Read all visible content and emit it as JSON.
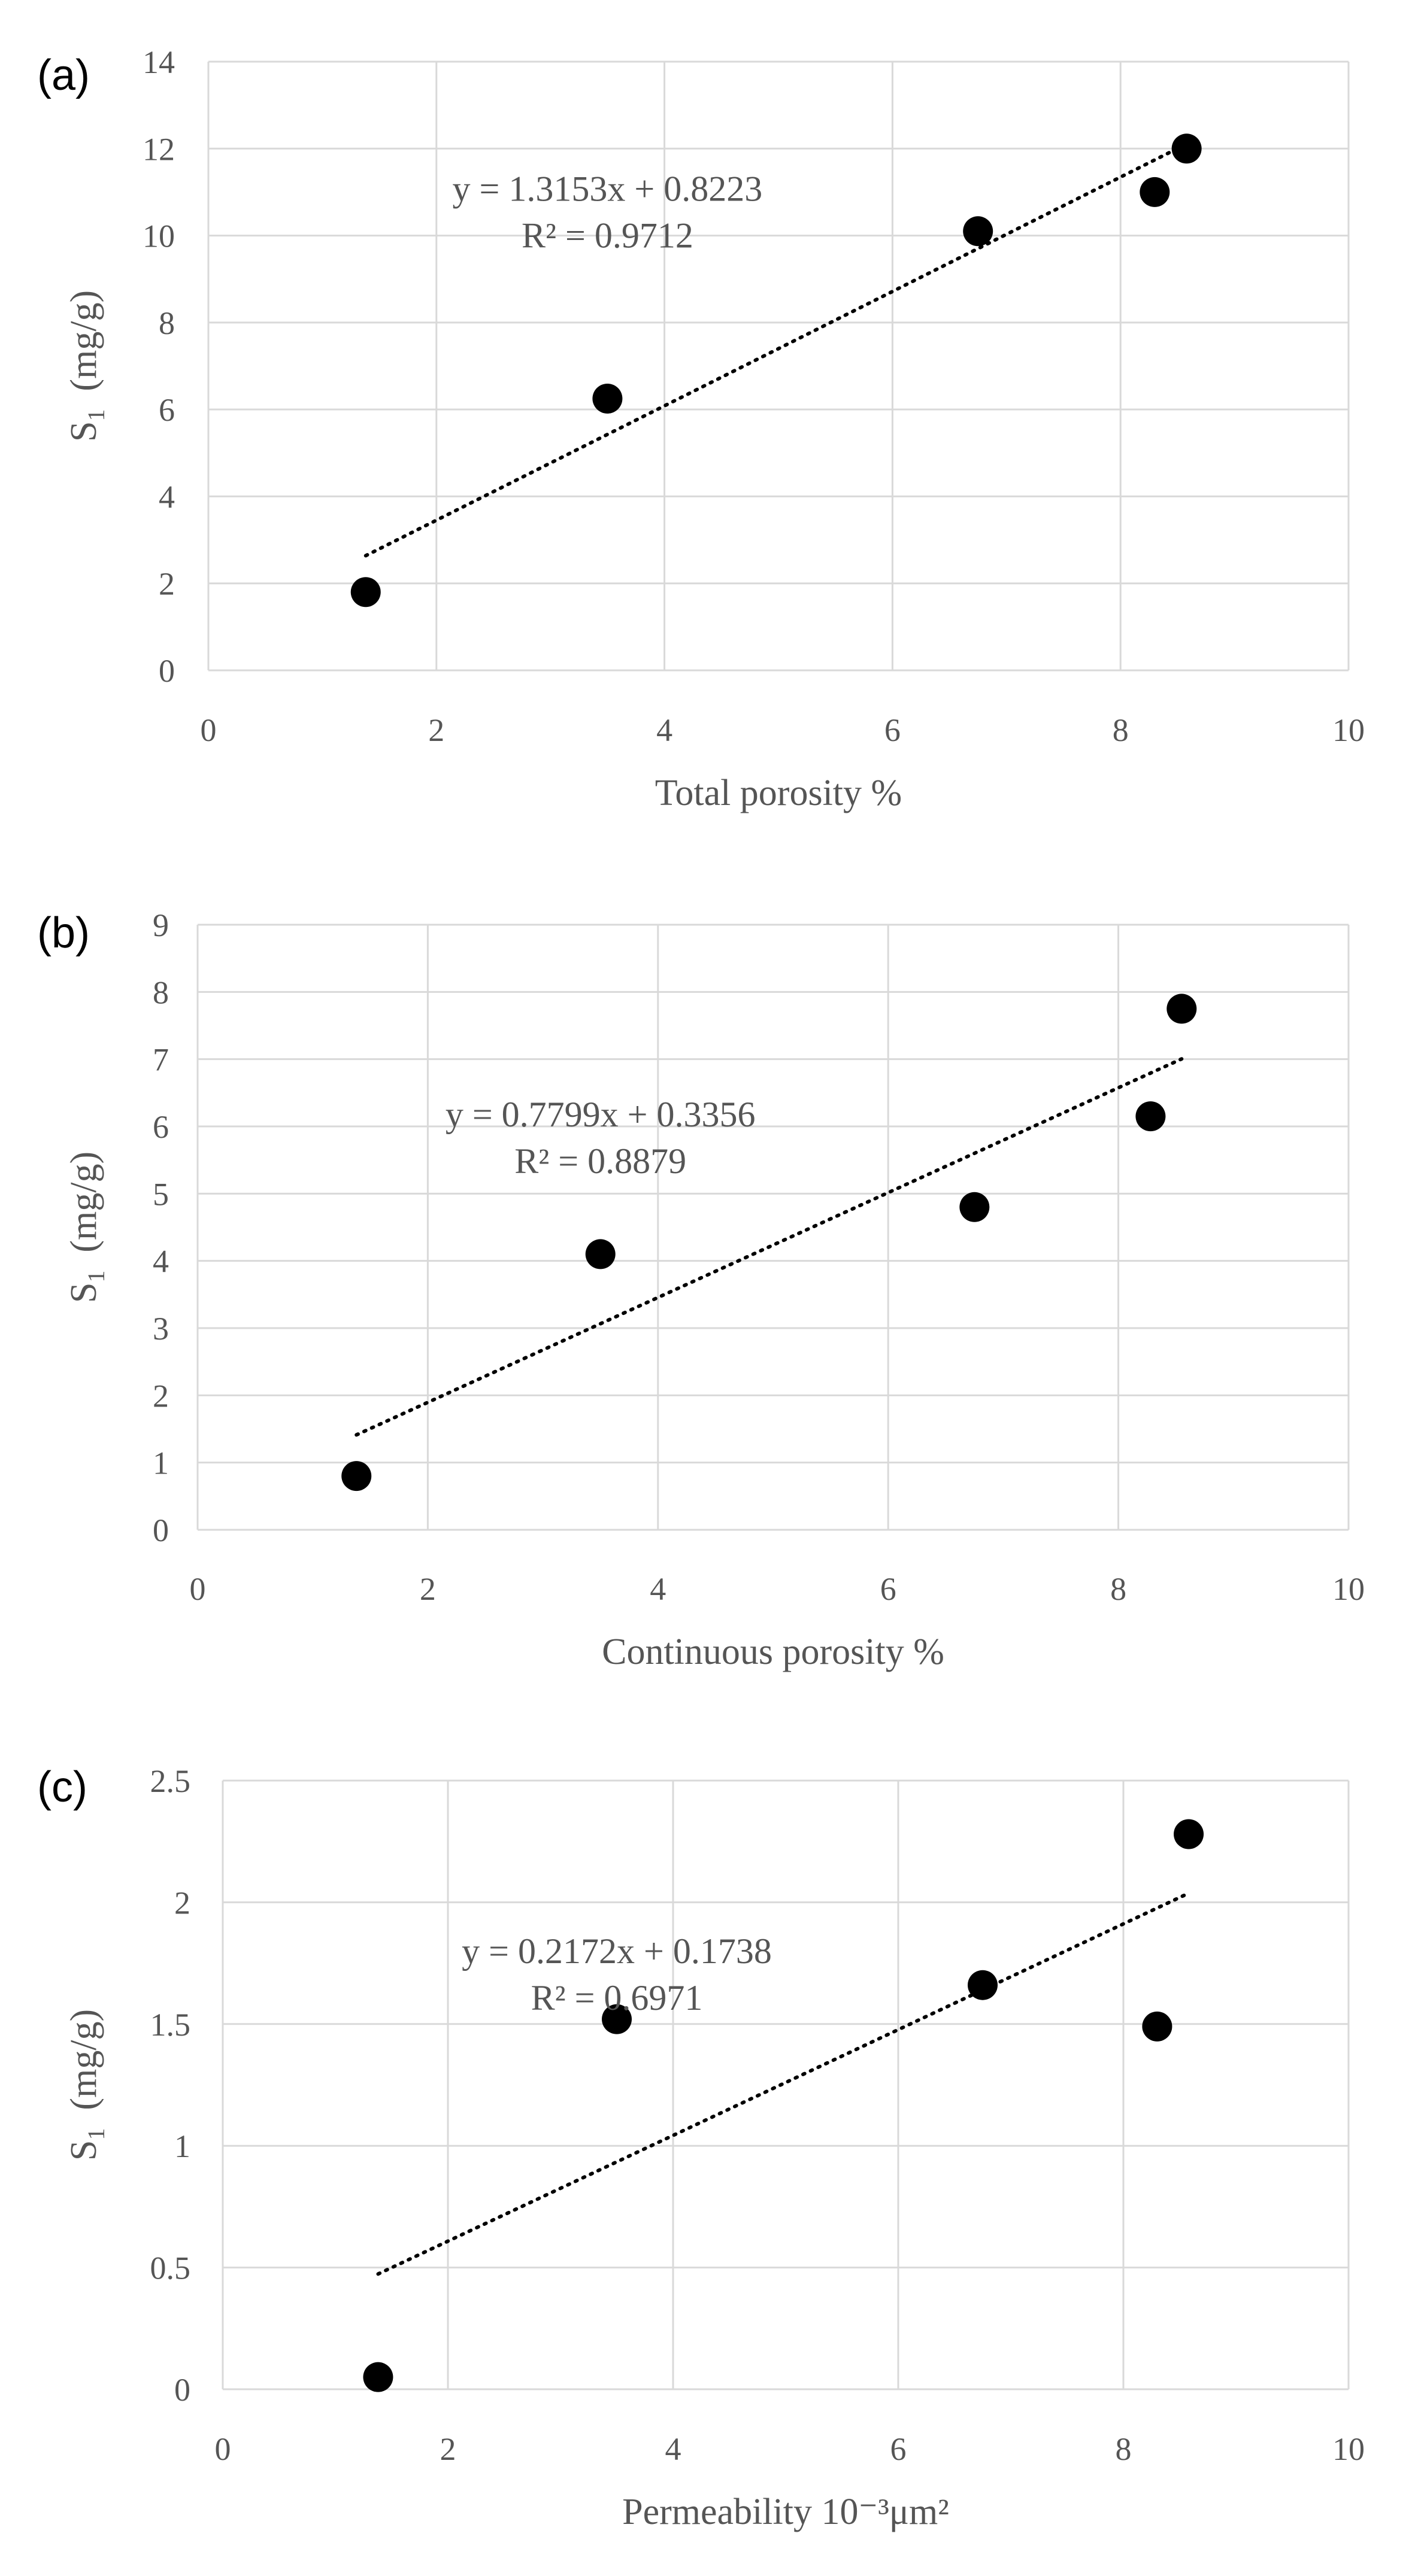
{
  "chart_data": [
    {
      "type": "scatter",
      "panel_label": "(a)",
      "xlabel": "Total porosity %",
      "ylabel_main": "S",
      "ylabel_sub": "1",
      "ylabel_unit": "(mg/g)",
      "xlim": [
        0,
        10
      ],
      "ylim": [
        0,
        14
      ],
      "xticks": [
        0,
        2,
        4,
        6,
        8,
        10
      ],
      "yticks": [
        0,
        2,
        4,
        6,
        8,
        10,
        12,
        14
      ],
      "ytick_labels": [
        "0",
        "2",
        "4",
        "6",
        "8",
        "10",
        "12",
        "14"
      ],
      "grid": true,
      "points": [
        [
          1.38,
          1.8
        ],
        [
          3.5,
          6.25
        ],
        [
          6.75,
          10.1
        ],
        [
          8.3,
          11.0
        ],
        [
          8.58,
          12.0
        ]
      ],
      "trendline": {
        "slope": 1.3153,
        "intercept": 0.8223,
        "x_range": [
          1.38,
          8.58
        ]
      },
      "equation": "y = 1.3153x + 0.8223",
      "r_squared": "R² = 0.9712",
      "equation_pos": {
        "x": 3.5,
        "y": 10.8
      }
    },
    {
      "type": "scatter",
      "panel_label": "(b)",
      "xlabel": "Continuous porosity %",
      "ylabel_main": "S",
      "ylabel_sub": "1",
      "ylabel_unit": "(mg/g)",
      "xlim": [
        0,
        10
      ],
      "ylim": [
        0,
        9
      ],
      "xticks": [
        0,
        2,
        4,
        6,
        8,
        10
      ],
      "yticks": [
        0,
        1,
        2,
        3,
        4,
        5,
        6,
        7,
        8,
        9
      ],
      "ytick_labels": [
        "0",
        "1",
        "2",
        "3",
        "4",
        "5",
        "6",
        "7",
        "8",
        "9"
      ],
      "grid": true,
      "points": [
        [
          1.38,
          0.8
        ],
        [
          3.5,
          4.1
        ],
        [
          6.75,
          4.8
        ],
        [
          8.28,
          6.15
        ],
        [
          8.55,
          7.75
        ]
      ],
      "trendline": {
        "slope": 0.7799,
        "intercept": 0.3356,
        "x_range": [
          1.38,
          8.55
        ]
      },
      "equation": "y = 0.7799x + 0.3356",
      "r_squared": "R² = 0.8879",
      "equation_pos": {
        "x": 3.5,
        "y": 6.0
      }
    },
    {
      "type": "scatter",
      "panel_label": "(c)",
      "xlabel": "Permeability 10⁻³μm²",
      "ylabel_main": "S",
      "ylabel_sub": "1",
      "ylabel_unit": "(mg/g)",
      "xlim": [
        0,
        10
      ],
      "ylim": [
        0,
        2.5
      ],
      "xticks": [
        0,
        2,
        4,
        6,
        8,
        10
      ],
      "yticks": [
        0,
        0.5,
        1,
        1.5,
        2,
        2.5
      ],
      "ytick_labels": [
        "0",
        "0.5",
        "1",
        "1.5",
        "2",
        "2.5"
      ],
      "grid": true,
      "points": [
        [
          1.38,
          0.05
        ],
        [
          3.5,
          1.52
        ],
        [
          6.75,
          1.66
        ],
        [
          8.3,
          1.49
        ],
        [
          8.58,
          2.28
        ]
      ],
      "trendline": {
        "slope": 0.2172,
        "intercept": 0.1738,
        "x_range": [
          1.38,
          8.58
        ]
      },
      "equation": "y = 0.2172x + 0.1738",
      "r_squared": "R² = 0.6971",
      "equation_pos": {
        "x": 3.5,
        "y": 1.75
      }
    }
  ]
}
